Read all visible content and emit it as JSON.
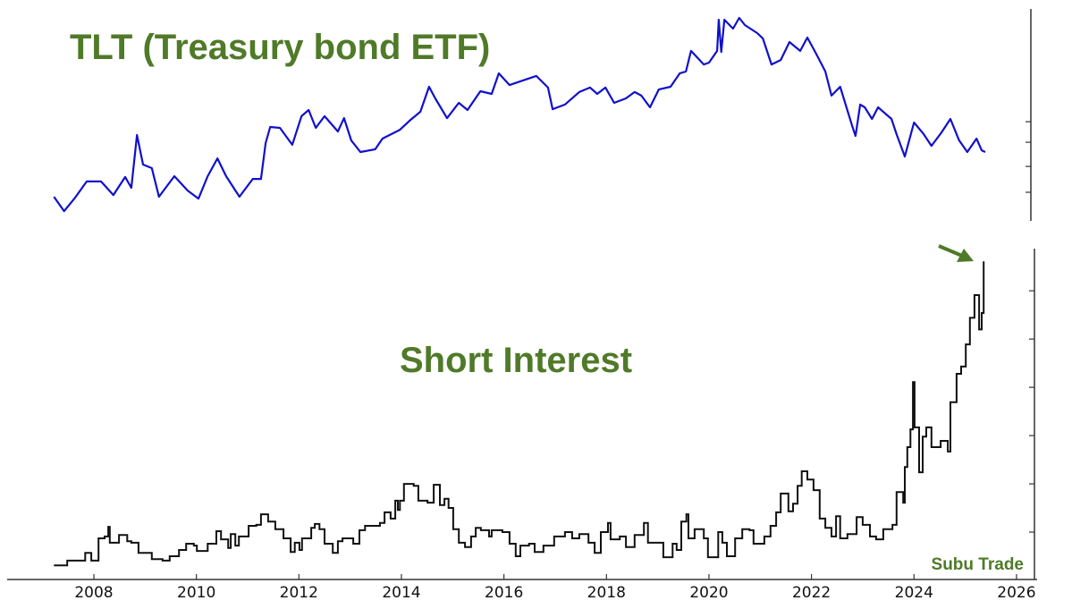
{
  "colors": {
    "title": "#4f7a28",
    "tlt_line": "#1010cc",
    "short_line": "#111111",
    "axis": "#333333"
  },
  "watermark": "Subu Trade",
  "chart_data": [
    {
      "type": "line",
      "title": "TLT (Treasury bond ETF)",
      "xlabel": "",
      "ylabel": "",
      "xlim": [
        2006.3,
        2026.4
      ],
      "ylim": [
        0,
        100
      ],
      "y_tick_labels_shown": false,
      "y_ticks": [
        13.5,
        25.7,
        37.1,
        46.8
      ],
      "y_axis_side": "right",
      "grid": false,
      "series": [
        {
          "x": [
            2007.22,
            2007.42,
            2007.62,
            2007.86,
            2008.14,
            2008.38,
            2008.61,
            2008.73,
            2008.84,
            2008.96,
            2009.13,
            2009.27,
            2009.57,
            2009.83,
            2010.04,
            2010.22,
            2010.41,
            2010.58,
            2010.84,
            2011.1,
            2011.26,
            2011.35,
            2011.44,
            2011.63,
            2011.87,
            2012.05,
            2012.19,
            2012.33,
            2012.5,
            2012.76,
            2012.88,
            2013.02,
            2013.2,
            2013.49,
            2013.63,
            2013.97,
            2014.16,
            2014.37,
            2014.54,
            2014.66,
            2014.89,
            2015.12,
            2015.29,
            2015.54,
            2015.76,
            2015.9,
            2016.11,
            2016.63,
            2016.86,
            2016.95,
            2017.19,
            2017.47,
            2017.68,
            2017.82,
            2017.98,
            2018.15,
            2018.38,
            2018.55,
            2018.68,
            2018.85,
            2019.02,
            2019.25,
            2019.43,
            2019.55,
            2019.65,
            2019.9,
            2020.0,
            2020.16,
            2020.19,
            2020.24,
            2020.3,
            2020.47,
            2020.59,
            2020.7,
            2020.94,
            2021.05,
            2021.22,
            2021.4,
            2021.57,
            2021.78,
            2021.92,
            2022.09,
            2022.27,
            2022.39,
            2022.56,
            2022.79,
            2022.86,
            2022.95,
            2023.04,
            2023.18,
            2023.3,
            2023.56,
            2023.66,
            2023.82,
            2024.0,
            2024.19,
            2024.34,
            2024.54,
            2024.71,
            2024.88,
            2025.04,
            2025.22,
            2025.32,
            2025.39
          ],
          "y": [
            11.4,
            4.6,
            10.5,
            18.6,
            18.6,
            12.2,
            20.7,
            15.6,
            40.5,
            26.6,
            24.9,
            11.4,
            21.1,
            14.3,
            10.5,
            21.1,
            29.5,
            21.1,
            11.4,
            19.8,
            19.8,
            36.7,
            44.3,
            43.9,
            35.9,
            49.4,
            52.3,
            43.9,
            49.4,
            42.2,
            48.5,
            38.0,
            32.5,
            33.8,
            38.8,
            43.0,
            47.3,
            51.5,
            63.3,
            57.8,
            48.5,
            55.7,
            52.3,
            61.2,
            59.9,
            69.6,
            64.1,
            68.4,
            62.9,
            52.7,
            54.9,
            60.8,
            62.9,
            59.9,
            62.9,
            55.7,
            57.8,
            60.8,
            59.1,
            53.6,
            62.0,
            63.3,
            69.6,
            70.5,
            80.2,
            73.8,
            74.7,
            80.2,
            94.9,
            79.7,
            94.9,
            90.7,
            95.8,
            92.4,
            88.6,
            86.1,
            73.8,
            75.9,
            84.4,
            80.2,
            86.5,
            78.9,
            70.5,
            59.1,
            63.3,
            45.1,
            40.1,
            54.9,
            53.6,
            48.1,
            53.6,
            48.1,
            40.9,
            30.4,
            46.4,
            40.9,
            35.4,
            41.8,
            48.1,
            38.0,
            32.5,
            38.8,
            33.3,
            32.5
          ]
        }
      ]
    },
    {
      "type": "line",
      "title": "Short Interest",
      "xlabel": "",
      "ylabel": "",
      "xlim": [
        2006.3,
        2026.4
      ],
      "ylim": [
        0,
        6.8
      ],
      "y_tick_labels_shown": false,
      "y_ticks": [
        1,
        2,
        3,
        4,
        5,
        6
      ],
      "y_axis_side": "right",
      "x_ticks": [
        "2008",
        "2010",
        "2012",
        "2014",
        "2016",
        "2018",
        "2020",
        "2022",
        "2024",
        "2026"
      ],
      "grid": false,
      "line_style": "step",
      "annotation": "arrow pointing to latest value",
      "series": [
        {
          "x": [
            2007.22,
            2007.48,
            2007.83,
            2007.95,
            2008.09,
            2008.21,
            2008.28,
            2008.31,
            2008.49,
            2008.65,
            2008.73,
            2008.87,
            2009.13,
            2009.34,
            2009.48,
            2009.66,
            2009.8,
            2009.95,
            2010.01,
            2010.22,
            2010.39,
            2010.48,
            2010.62,
            2010.67,
            2010.76,
            2010.83,
            2011.02,
            2011.17,
            2011.26,
            2011.4,
            2011.54,
            2011.7,
            2011.84,
            2011.92,
            2012.01,
            2012.06,
            2012.24,
            2012.31,
            2012.4,
            2012.5,
            2012.66,
            2012.76,
            2012.85,
            2013.06,
            2013.18,
            2013.29,
            2013.49,
            2013.58,
            2013.67,
            2013.79,
            2013.88,
            2013.93,
            2013.97,
            2014.05,
            2014.24,
            2014.33,
            2014.51,
            2014.63,
            2014.75,
            2014.84,
            2014.92,
            2015.01,
            2015.12,
            2015.24,
            2015.36,
            2015.45,
            2015.55,
            2015.71,
            2015.76,
            2015.97,
            2016.11,
            2016.23,
            2016.32,
            2016.49,
            2016.6,
            2016.77,
            2016.98,
            2017.19,
            2017.33,
            2017.47,
            2017.65,
            2017.77,
            2017.89,
            2018.03,
            2018.08,
            2018.26,
            2018.38,
            2018.55,
            2018.73,
            2018.81,
            2019.02,
            2019.11,
            2019.29,
            2019.37,
            2019.46,
            2019.56,
            2019.6,
            2019.72,
            2019.9,
            2019.98,
            2020.18,
            2020.26,
            2020.35,
            2020.51,
            2020.65,
            2020.79,
            2020.87,
            2021.08,
            2021.2,
            2021.31,
            2021.4,
            2021.55,
            2021.64,
            2021.73,
            2021.81,
            2021.92,
            2022.04,
            2022.16,
            2022.27,
            2022.39,
            2022.48,
            2022.56,
            2022.7,
            2022.88,
            2023.0,
            2023.14,
            2023.26,
            2023.4,
            2023.58,
            2023.66,
            2023.79,
            2023.82,
            2023.87,
            2023.93,
            2023.98,
            2024.01,
            2024.1,
            2024.17,
            2024.24,
            2024.34,
            2024.52,
            2024.66,
            2024.71,
            2024.83,
            2024.92,
            2025.01,
            2025.09,
            2025.18,
            2025.27,
            2025.32,
            2025.36
          ],
          "y": [
            0.31,
            0.41,
            0.57,
            0.41,
            0.87,
            0.91,
            1.11,
            0.78,
            0.94,
            0.81,
            0.78,
            0.57,
            0.44,
            0.41,
            0.5,
            0.63,
            0.76,
            0.72,
            0.61,
            0.76,
            1.02,
            0.85,
            0.67,
            0.96,
            0.72,
            0.91,
            1.13,
            1.15,
            1.37,
            1.22,
            1.06,
            0.87,
            0.59,
            0.78,
            0.63,
            0.87,
            1.09,
            1.17,
            1.06,
            0.76,
            0.57,
            0.81,
            0.87,
            0.76,
            1.04,
            1.13,
            1.13,
            1.19,
            1.41,
            1.28,
            1.65,
            1.46,
            1.65,
            2.0,
            1.96,
            1.65,
            1.61,
            1.98,
            1.56,
            1.69,
            1.5,
            1.06,
            0.78,
            0.69,
            0.91,
            1.09,
            1.04,
            0.91,
            1.04,
            1.0,
            0.76,
            0.5,
            0.72,
            0.76,
            0.59,
            0.72,
            0.91,
            1.0,
            0.87,
            0.96,
            0.78,
            0.57,
            1.0,
            1.19,
            0.85,
            0.91,
            0.69,
            0.94,
            1.19,
            0.78,
            0.78,
            0.48,
            0.76,
            0.63,
            1.22,
            1.37,
            0.87,
            1.06,
            0.87,
            0.48,
            1.0,
            0.78,
            0.5,
            0.87,
            1.06,
            1.04,
            0.76,
            0.91,
            1.13,
            1.41,
            1.8,
            1.43,
            1.59,
            1.96,
            2.26,
            2.09,
            1.87,
            1.28,
            1.09,
            0.91,
            1.33,
            0.87,
            0.96,
            1.31,
            1.15,
            0.91,
            0.85,
            1.06,
            1.15,
            1.83,
            1.61,
            2.35,
            2.76,
            3.13,
            4.11,
            3.17,
            2.24,
            2.98,
            3.17,
            2.76,
            2.89,
            2.67,
            3.69,
            4.28,
            4.43,
            4.89,
            5.44,
            5.91,
            5.2,
            5.54,
            6.61
          ]
        }
      ]
    }
  ]
}
